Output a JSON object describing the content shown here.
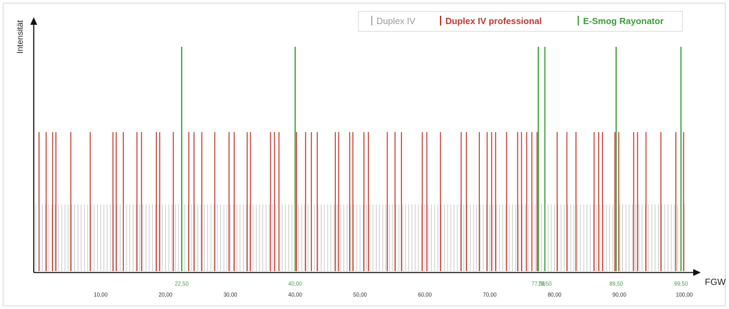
{
  "chart_data": {
    "type": "bar",
    "xlabel": "FGW",
    "ylabel": "Intensität",
    "xlim": [
      0,
      100
    ],
    "grid": false,
    "legend_position": "top-right",
    "x_ticks": [
      "10,00",
      "20,00",
      "30,00",
      "40,00",
      "50,00",
      "60,00",
      "70,00",
      "80,00",
      "90,00",
      "100,00"
    ],
    "highlight_ticks": [
      "22,50",
      "40,00",
      "77,50",
      "78,50",
      "89,50",
      "99,50"
    ],
    "series": [
      {
        "name": "Duplex IV",
        "color": "#c8c8c8",
        "intensity": 1,
        "x_start": 0,
        "x_end": 100,
        "x_step": 0.5
      },
      {
        "name": "Duplex IV professional",
        "color": "#c0392b",
        "intensity": 2,
        "x": [
          0.5,
          1.6,
          2.6,
          3.1,
          5.4,
          8.4,
          11.9,
          12.4,
          13.5,
          15.6,
          16.3,
          18.6,
          19.1,
          21.2,
          23.6,
          24.4,
          25.6,
          27.6,
          29.8,
          30.6,
          32.6,
          33.1,
          36.2,
          36.8,
          37.5,
          40.2,
          41.6,
          42.5,
          43.4,
          46.2,
          46.7,
          48.4,
          48.9,
          50.6,
          51.3,
          54.2,
          55.4,
          56.4,
          59.6,
          60.3,
          62.4,
          65.6,
          66.4,
          68.4,
          69.6,
          70.3,
          70.9,
          72.6,
          74.3,
          74.9,
          75.7,
          76.5,
          77.3,
          80.4,
          81.9,
          83.3,
          86.1,
          86.8,
          87.4,
          89.3,
          89.9,
          92.2,
          92.8,
          94.1,
          96.4,
          98.7,
          99.9
        ]
      },
      {
        "name": "E-Smog Rayonator",
        "color": "#52a852",
        "intensity": 3,
        "x": [
          22.5,
          40.0,
          77.5,
          78.5,
          89.5,
          99.5
        ]
      }
    ]
  }
}
